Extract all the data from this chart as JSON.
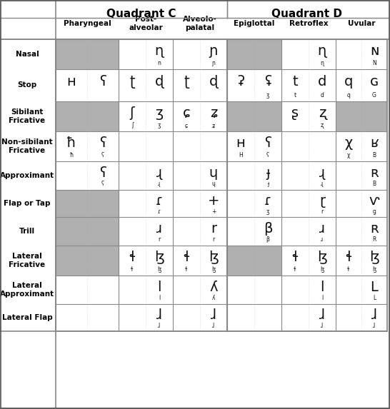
{
  "title_C": "Quadrant C",
  "title_D": "Quadrant D",
  "col_headers": [
    "Pharyngeal",
    "Post-\nalveolar",
    "Alveolo-\npalatal",
    "Epiglottal",
    "Retroflex",
    "Uvular"
  ],
  "row_headers": [
    "Nasal",
    "Stop",
    "Sibilant\nFricative",
    "Non-sibilant\nFricative",
    "Approximant",
    "Flap or Tap",
    "Trill",
    "Lateral\nFricative",
    "Lateral\nApproximant",
    "Lateral Flap"
  ],
  "gray_color": "#b0b0b0",
  "white_color": "#ffffff",
  "border_color": "#888888",
  "dashed_color": "#aaaaaa",
  "text_color": "#000000",
  "title_fontsize": 11,
  "header_fontsize": 8,
  "row_label_fontsize": 7.5,
  "symbol_fontsize": 6,
  "fig_width": 5.46,
  "fig_height": 5.73
}
